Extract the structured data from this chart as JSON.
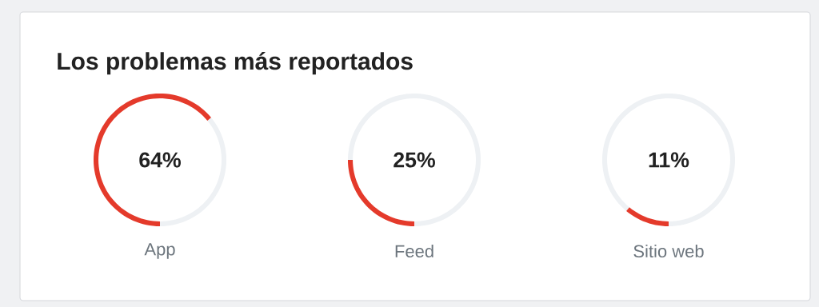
{
  "chart_data": [
    {
      "type": "donut",
      "title": "Los problemas más reportados",
      "categories": [
        "App",
        null
      ],
      "values": [
        64,
        36
      ],
      "colors": [
        "#e43a2b",
        "#eef1f4"
      ],
      "annotations": [
        "64%"
      ]
    },
    {
      "type": "donut",
      "categories": [
        "Feed",
        null
      ],
      "values": [
        25,
        75
      ],
      "colors": [
        "#e43a2b",
        "#eef1f4"
      ],
      "annotations": [
        "25%"
      ]
    },
    {
      "type": "donut",
      "categories": [
        "Sitio web",
        null
      ],
      "values": [
        11,
        89
      ],
      "colors": [
        "#e43a2b",
        "#eef1f4"
      ],
      "annotations": [
        "11%"
      ]
    }
  ]
}
